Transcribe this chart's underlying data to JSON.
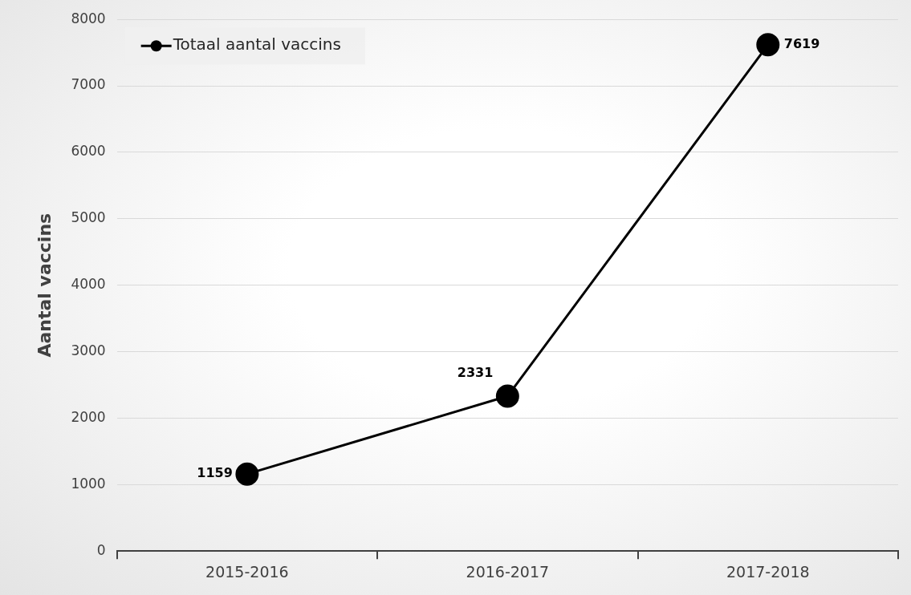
{
  "chart_data": {
    "type": "line",
    "ylabel": "Aantal vaccins",
    "categories": [
      "2015-2016",
      "2016-2017",
      "2017-2018"
    ],
    "series": [
      {
        "name": "Totaal aantal vaccins",
        "color": "#000000",
        "values": [
          1159,
          2331,
          7619
        ]
      }
    ],
    "ylim": [
      0,
      8000
    ],
    "yticks": [
      0,
      1000,
      2000,
      3000,
      4000,
      5000,
      6000,
      7000,
      8000
    ],
    "grid": "y",
    "legend": "top left",
    "marker": "circle",
    "line_style": "solid",
    "data_labels": true
  }
}
